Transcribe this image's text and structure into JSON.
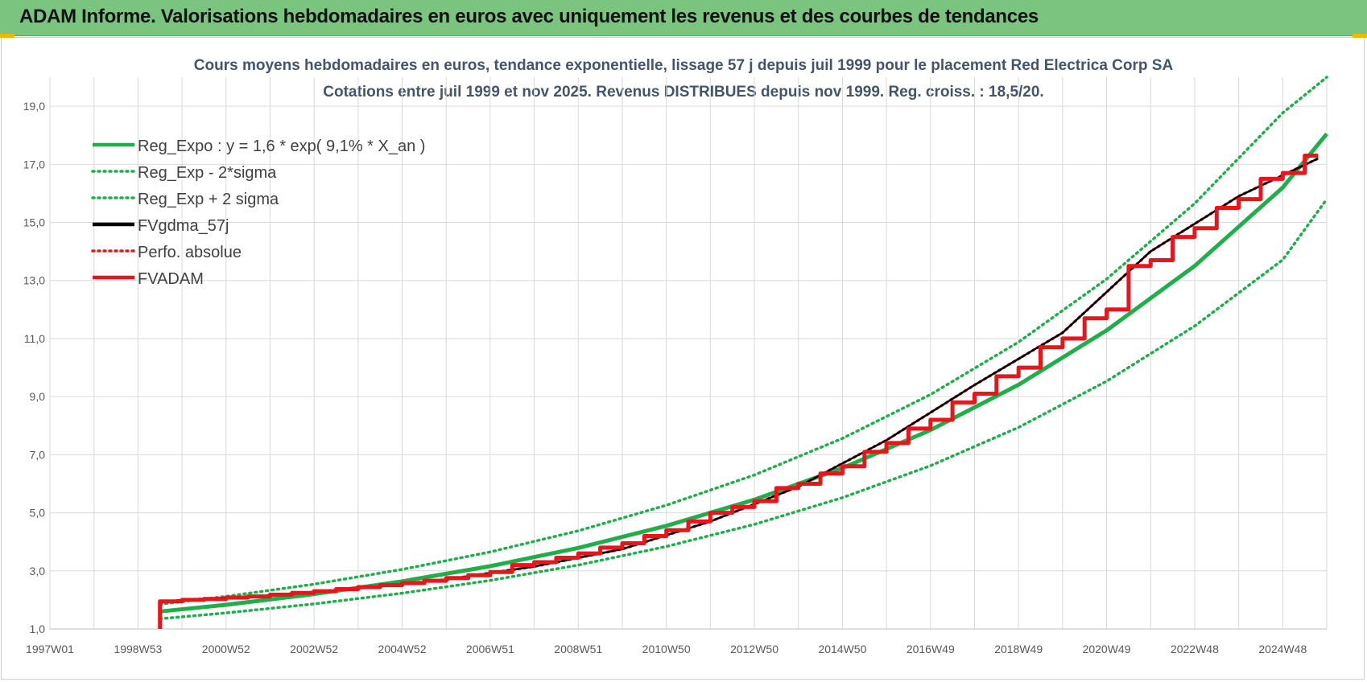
{
  "banner": {
    "title": "ADAM Informe. Valorisations hebdomadaires en euros avec uniquement les revenus et des courbes de tendances"
  },
  "colors": {
    "banner_bg": "#7ac47f",
    "regression": "#1fae4a",
    "gdma": "#000000",
    "adam": "#e8161b",
    "grid": "#d9d9d9",
    "title": "#44546a"
  },
  "chart_data": {
    "type": "line",
    "title": "Cours moyens hebdomadaires en euros, tendance exponentielle, lissage 57 j depuis juil 1999 pour le placement Red Electrica Corp SA",
    "subtitle": "Cotations entre juil 1999 et nov 2025. Revenus DISTRIBUES depuis nov 1999. Reg. croiss. : 18,5/20.",
    "xlabel": "",
    "ylabel": "",
    "xlim": [
      1997.0,
      2026.0
    ],
    "ylim": [
      1.0,
      20.0
    ],
    "grid": true,
    "legend_position": "top-left",
    "x_ticks": [
      {
        "x": 1997.0,
        "label": "1997W01"
      },
      {
        "x": 1999.0,
        "label": "1998W53"
      },
      {
        "x": 2001.0,
        "label": "2000W52"
      },
      {
        "x": 2003.0,
        "label": "2002W52"
      },
      {
        "x": 2005.0,
        "label": "2004W52"
      },
      {
        "x": 2007.0,
        "label": "2006W51"
      },
      {
        "x": 2009.0,
        "label": "2008W51"
      },
      {
        "x": 2011.0,
        "label": "2010W50"
      },
      {
        "x": 2013.0,
        "label": "2012W50"
      },
      {
        "x": 2015.0,
        "label": "2014W50"
      },
      {
        "x": 2017.0,
        "label": "2016W49"
      },
      {
        "x": 2019.0,
        "label": "2018W49"
      },
      {
        "x": 2021.0,
        "label": "2020W49"
      },
      {
        "x": 2023.0,
        "label": "2022W48"
      },
      {
        "x": 2025.0,
        "label": "2024W48"
      }
    ],
    "y_ticks": [
      {
        "y": 1.0,
        "label": "1,0"
      },
      {
        "y": 3.0,
        "label": "3,0"
      },
      {
        "y": 5.0,
        "label": "5,0"
      },
      {
        "y": 7.0,
        "label": "7,0"
      },
      {
        "y": 9.0,
        "label": "9,0"
      },
      {
        "y": 11.0,
        "label": "11,0"
      },
      {
        "y": 13.0,
        "label": "13,0"
      },
      {
        "y": 15.0,
        "label": "15,0"
      },
      {
        "y": 17.0,
        "label": "17,0"
      },
      {
        "y": 19.0,
        "label": "19,0"
      }
    ],
    "series": [
      {
        "name": "Reg_Expo : y = 1,6 * exp( 9,1% *  X_an )",
        "style": "solid-thick",
        "color": "#1fae4a",
        "x": [
          1999.5,
          2001,
          2003,
          2005,
          2007,
          2009,
          2011,
          2013,
          2015,
          2017,
          2019,
          2021,
          2023,
          2025,
          2026
        ],
        "y": [
          1.6,
          1.83,
          2.2,
          2.64,
          3.16,
          3.79,
          4.55,
          5.45,
          6.54,
          7.85,
          9.41,
          11.28,
          13.5,
          16.2,
          18.05
        ]
      },
      {
        "name": "Reg_Exp - 2*sigma",
        "style": "dotted",
        "color": "#1fae4a",
        "x": [
          1999.5,
          2001,
          2003,
          2005,
          2007,
          2009,
          2011,
          2013,
          2015,
          2017,
          2019,
          2021,
          2023,
          2025,
          2026
        ],
        "y": [
          1.35,
          1.55,
          1.86,
          2.23,
          2.67,
          3.2,
          3.84,
          4.6,
          5.52,
          6.62,
          7.94,
          9.53,
          11.43,
          13.71,
          15.8
        ]
      },
      {
        "name": "Reg_Exp + 2 sigma",
        "style": "dotted",
        "color": "#1fae4a",
        "x": [
          1999.5,
          2001,
          2003,
          2005,
          2007,
          2009,
          2011,
          2013,
          2015,
          2017,
          2019,
          2021,
          2023,
          2025,
          2026
        ],
        "y": [
          1.85,
          2.12,
          2.54,
          3.05,
          3.65,
          4.38,
          5.26,
          6.3,
          7.56,
          9.07,
          10.88,
          13.05,
          15.65,
          18.77,
          20.0
        ]
      },
      {
        "name": "FVgdma_57j",
        "style": "solid-thin",
        "color": "#000000",
        "x": [
          1999.5,
          2000.0,
          2002.0,
          2004.0,
          2006.0,
          2008.0,
          2010.0,
          2012.0,
          2014.0,
          2016.0,
          2018.0,
          2020.0,
          2022.0,
          2024.0,
          2025.8
        ],
        "y": [
          1.9,
          2.0,
          2.15,
          2.4,
          2.7,
          3.15,
          3.75,
          4.7,
          5.9,
          7.5,
          9.4,
          11.2,
          14.0,
          15.9,
          17.2
        ]
      },
      {
        "name": "Perfo. absolue",
        "style": "dotted",
        "color": "#e8161b",
        "x": [
          1999.5,
          2000.0,
          2002.0,
          2004.0,
          2006.0,
          2008.0,
          2010.0,
          2012.0,
          2014.0,
          2016.0,
          2018.0,
          2020.0,
          2022.0,
          2024.0,
          2025.8
        ],
        "y": [
          1.9,
          2.0,
          2.15,
          2.4,
          2.7,
          3.15,
          3.75,
          4.7,
          5.9,
          7.5,
          9.4,
          11.2,
          14.0,
          15.9,
          17.2
        ]
      },
      {
        "name": "FVADAM",
        "style": "step-thick",
        "color": "#e8161b",
        "x": [
          1999.5,
          1999.5,
          2000.0,
          2000.5,
          2001.0,
          2001.5,
          2002.0,
          2002.5,
          2003.0,
          2003.5,
          2004.0,
          2004.5,
          2005.0,
          2005.5,
          2006.0,
          2006.5,
          2007.0,
          2007.5,
          2008.0,
          2008.5,
          2009.0,
          2009.5,
          2010.0,
          2010.5,
          2011.0,
          2011.5,
          2012.0,
          2012.5,
          2013.0,
          2013.5,
          2014.0,
          2014.5,
          2015.0,
          2015.5,
          2016.0,
          2016.5,
          2017.0,
          2017.5,
          2018.0,
          2018.5,
          2019.0,
          2019.5,
          2020.0,
          2020.5,
          2021.0,
          2021.5,
          2022.0,
          2022.5,
          2023.0,
          2023.5,
          2024.0,
          2024.5,
          2025.0,
          2025.5,
          2025.8
        ],
        "y": [
          1.0,
          1.95,
          2.0,
          2.03,
          2.08,
          2.12,
          2.18,
          2.24,
          2.3,
          2.37,
          2.44,
          2.51,
          2.58,
          2.66,
          2.75,
          2.85,
          2.96,
          3.2,
          3.3,
          3.45,
          3.6,
          3.8,
          3.95,
          4.2,
          4.4,
          4.7,
          5.0,
          5.2,
          5.4,
          5.85,
          6.0,
          6.35,
          6.6,
          7.1,
          7.4,
          7.9,
          8.2,
          8.8,
          9.1,
          9.7,
          10.0,
          10.7,
          11.0,
          11.7,
          12.0,
          13.5,
          13.7,
          14.5,
          14.8,
          15.5,
          15.8,
          16.5,
          16.7,
          17.3,
          17.3
        ]
      }
    ]
  }
}
